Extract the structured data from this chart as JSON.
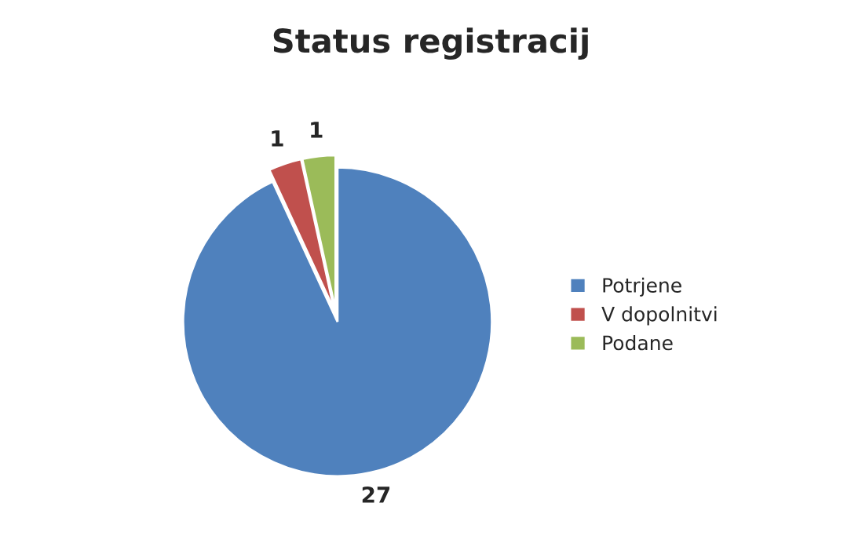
{
  "chart_data": {
    "type": "pie",
    "title": "Status registracij",
    "categories": [
      "Potrjene",
      "V dopolnitvi",
      "Podane"
    ],
    "values": [
      27,
      1,
      1
    ],
    "colors": [
      "#4f81bd",
      "#c0504d",
      "#9bbb59"
    ],
    "data_labels": true,
    "legend": "right"
  }
}
